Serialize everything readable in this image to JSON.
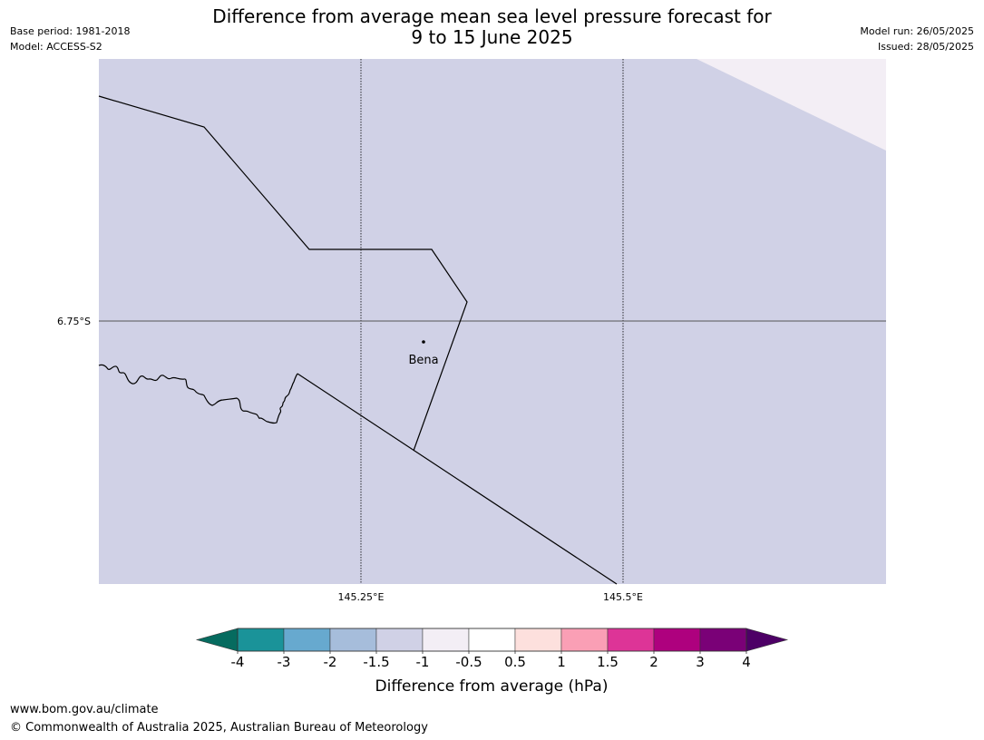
{
  "header": {
    "base_period": "Base period: 1981-2018",
    "model": "Model: ACCESS-S2",
    "title_line1": "Difference from average mean sea level pressure forecast for",
    "title_line2": "9 to 15 June 2025",
    "model_run": "Model run: 26/05/2025",
    "issued": "Issued: 28/05/2025"
  },
  "map": {
    "latitude_labels": [
      "6.75°S"
    ],
    "longitude_labels": [
      "145.25°E",
      "145.5°E"
    ],
    "places": [
      {
        "name": "Bena"
      }
    ],
    "colors": {
      "background_fill": "#d0d1e6",
      "corner_fill": "#f3eef5",
      "boundary_line": "#000000",
      "gridline": "#555555"
    }
  },
  "legend": {
    "title": "Difference from average (hPa)",
    "tick_labels": [
      "-4",
      "-3",
      "-2",
      "-1.5",
      "-1",
      "-0.5",
      "0.5",
      "1",
      "1.5",
      "2",
      "3",
      "4"
    ],
    "under_color": "#066b5f",
    "over_color": "#4d0066",
    "colors": [
      "#1a9399",
      "#67a9cf",
      "#a6bddb",
      "#d0d1e6",
      "#f3eef5",
      "#ffffff",
      "#fde0dd",
      "#fa9fb5",
      "#dd3497",
      "#ae017e",
      "#7a0177"
    ]
  },
  "footer": {
    "url": "www.bom.gov.au/climate",
    "copyright": "© Commonwealth of Australia 2025, Australian Bureau of Meteorology"
  }
}
